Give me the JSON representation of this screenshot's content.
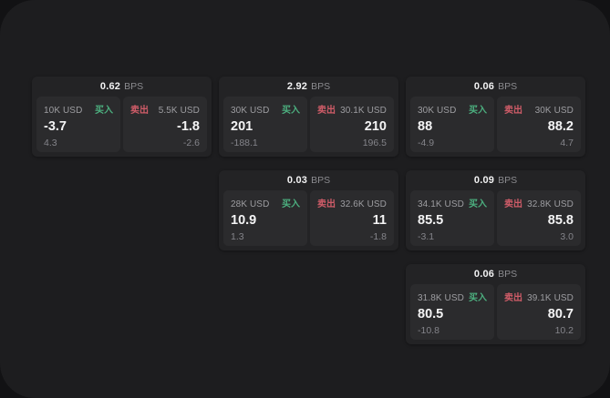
{
  "labels": {
    "bps_unit": "BPS",
    "buy": "买入",
    "sell": "卖出"
  },
  "colors": {
    "buy_green": "#4caf7f",
    "sell_red": "#cf5c68",
    "panel_background": "#1d1d1f",
    "card_background": "#232325",
    "tile_background": "#2b2b2d"
  },
  "cards": [
    {
      "bps": "0.62",
      "grid": {
        "col": 1,
        "row": 1
      },
      "buy": {
        "amount": "10K USD",
        "value": "-3.7",
        "delta": "4.3"
      },
      "sell": {
        "amount": "5.5K USD",
        "value": "-1.8",
        "delta": "-2.6"
      }
    },
    {
      "bps": "2.92",
      "grid": {
        "col": 2,
        "row": 1
      },
      "buy": {
        "amount": "30K USD",
        "value": "201",
        "delta": "-188.1"
      },
      "sell": {
        "amount": "30.1K USD",
        "value": "210",
        "delta": "196.5"
      }
    },
    {
      "bps": "0.06",
      "grid": {
        "col": 3,
        "row": 1
      },
      "buy": {
        "amount": "30K USD",
        "value": "88",
        "delta": "-4.9"
      },
      "sell": {
        "amount": "30K USD",
        "value": "88.2",
        "delta": "4.7"
      }
    },
    {
      "bps": "0.03",
      "grid": {
        "col": 2,
        "row": 2
      },
      "buy": {
        "amount": "28K USD",
        "value": "10.9",
        "delta": "1.3"
      },
      "sell": {
        "amount": "32.6K USD",
        "value": "11",
        "delta": "-1.8"
      }
    },
    {
      "bps": "0.09",
      "grid": {
        "col": 3,
        "row": 2
      },
      "buy": {
        "amount": "34.1K USD",
        "value": "85.5",
        "delta": "-3.1"
      },
      "sell": {
        "amount": "32.8K USD",
        "value": "85.8",
        "delta": "3.0"
      }
    },
    {
      "bps": "0.06",
      "grid": {
        "col": 3,
        "row": 3
      },
      "buy": {
        "amount": "31.8K USD",
        "value": "80.5",
        "delta": "-10.8"
      },
      "sell": {
        "amount": "39.1K USD",
        "value": "80.7",
        "delta": "10.2"
      }
    }
  ]
}
